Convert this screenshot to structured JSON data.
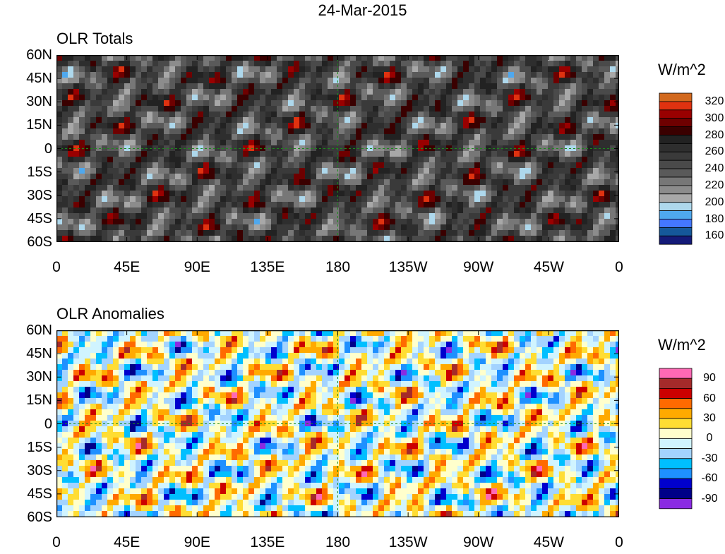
{
  "title": "24-Mar-2015",
  "lat_labels": [
    "60N",
    "45N",
    "30N",
    "15N",
    "0",
    "15S",
    "30S",
    "45S",
    "60S"
  ],
  "lon_labels": [
    "0",
    "45E",
    "90E",
    "135E",
    "180",
    "135W",
    "90W",
    "45W",
    "0"
  ],
  "panels": [
    {
      "title": "OLR Totals",
      "units": "W/m^2",
      "colorbar": {
        "labels": [
          "320",
          "300",
          "280",
          "260",
          "240",
          "220",
          "200",
          "180",
          "160"
        ],
        "colors": [
          "#d2691e",
          "#e03210",
          "#990000",
          "#6e0000",
          "#3a0000",
          "#222222",
          "#2e2e2e",
          "#3a3a3a",
          "#4a4a4a",
          "#5a5a5a",
          "#777777",
          "#8c8c8c",
          "#a8a8a8",
          "#aed8ec",
          "#4fa8ee",
          "#4477ff",
          "#15589a",
          "#141a78"
        ]
      }
    },
    {
      "title": "OLR Anomalies",
      "units": "W/m^2",
      "colorbar": {
        "labels": [
          "90",
          "60",
          "30",
          "0",
          "-30",
          "-60",
          "-90"
        ],
        "colors": [
          "#ff69b4",
          "#a52a2a",
          "#cc0000",
          "#ff6a00",
          "#ffaa00",
          "#ffdd33",
          "#ffffcc",
          "#d0f4ff",
          "#a3d3ff",
          "#00bfff",
          "#1e90ff",
          "#0000cd",
          "#000088",
          "#8a2be2"
        ]
      }
    }
  ]
}
